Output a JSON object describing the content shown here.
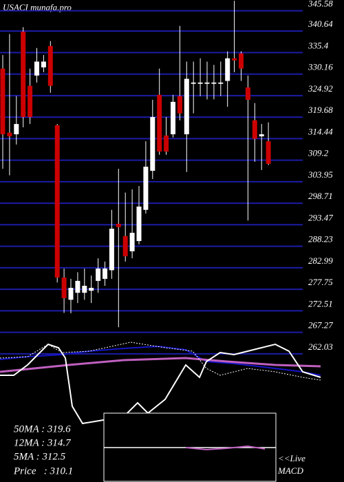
{
  "chart_data": {
    "type": "candlestick",
    "title": "USACI munafa.pro",
    "categories": [
      null,
      null,
      null,
      null,
      null,
      null,
      null,
      null,
      null,
      null,
      null,
      null,
      null,
      null,
      null,
      null,
      null,
      null,
      null,
      null,
      null,
      null,
      null,
      null,
      null,
      null,
      null,
      null,
      null,
      null,
      null,
      null,
      null,
      null,
      null,
      null,
      null,
      null,
      null,
      null
    ],
    "open": [
      331.5,
      315.9,
      315.5,
      340.5,
      327.3,
      329.8,
      331.8,
      337.0,
      317.7,
      280.6,
      275.2,
      276.9,
      276.9,
      277.4,
      279.8,
      280.3,
      282.4,
      293.7,
      290.7,
      287.0,
      289.5,
      297.1,
      306.6,
      325.1,
      315.2,
      315.5,
      324.8,
      315.5,
      327.8,
      327.8,
      327.8,
      327.8,
      327.8,
      328.5,
      334.0,
      335.2,
      326.9,
      318.9,
      315.0,
      313.8
    ],
    "high": [
      334.8,
      339.9,
      324.8,
      341.6,
      331.5,
      336.5,
      334.8,
      338.2,
      318.0,
      282.8,
      280.3,
      281.9,
      282.8,
      281.1,
      285.3,
      284.5,
      297.1,
      307.1,
      301.3,
      302.1,
      302.9,
      313.8,
      323.9,
      331.5,
      319.7,
      325.1,
      341.9,
      333.2,
      333.2,
      334.0,
      333.2,
      332.4,
      333.2,
      335.7,
      348.0,
      335.7,
      329.8,
      323.1,
      318.0,
      318.4
    ],
    "low": [
      307.1,
      305.5,
      313.0,
      317.2,
      318.0,
      328.1,
      330.6,
      325.6,
      279.4,
      272.0,
      271.9,
      274.4,
      275.2,
      274.4,
      276.9,
      278.6,
      280.3,
      268.5,
      284.5,
      285.3,
      288.7,
      296.2,
      304.6,
      310.5,
      310.5,
      314.7,
      318.9,
      306.3,
      320.6,
      324.8,
      324.0,
      324.0,
      324.8,
      322.2,
      330.6,
      328.5,
      294.5,
      308.8,
      306.8,
      308.0
    ],
    "close": [
      315.5,
      315.0,
      318.0,
      319.7,
      319.7,
      333.2,
      333.2,
      327.3,
      280.6,
      275.6,
      278.1,
      279.8,
      278.6,
      278.1,
      282.8,
      282.8,
      292.5,
      292.9,
      285.8,
      291.5,
      297.9,
      307.6,
      319.7,
      311.3,
      311.3,
      323.4,
      320.6,
      329.0,
      328.1,
      328.1,
      328.1,
      328.1,
      328.1,
      334.0,
      333.5,
      331.5,
      323.9,
      314.4,
      315.5,
      308.3
    ],
    "up_color": "#ffffff",
    "down_color": "#cc0000",
    "grid_color": "#1c1ca8",
    "ylim": [
      260,
      348.2
    ],
    "yticks": [
      345.58,
      340.64,
      335.4,
      330.16,
      324.92,
      319.68,
      314.44,
      309.2,
      303.95,
      298.71,
      293.47,
      288.23,
      282.99,
      277.75,
      272.51,
      267.27,
      262.03
    ],
    "summary": [
      "50MA : 319.6",
      "12MA : 314.7",
      "5MA : 312.5",
      "Price   : 310.1"
    ],
    "live": "<<Live",
    "macd": "MACD"
  }
}
